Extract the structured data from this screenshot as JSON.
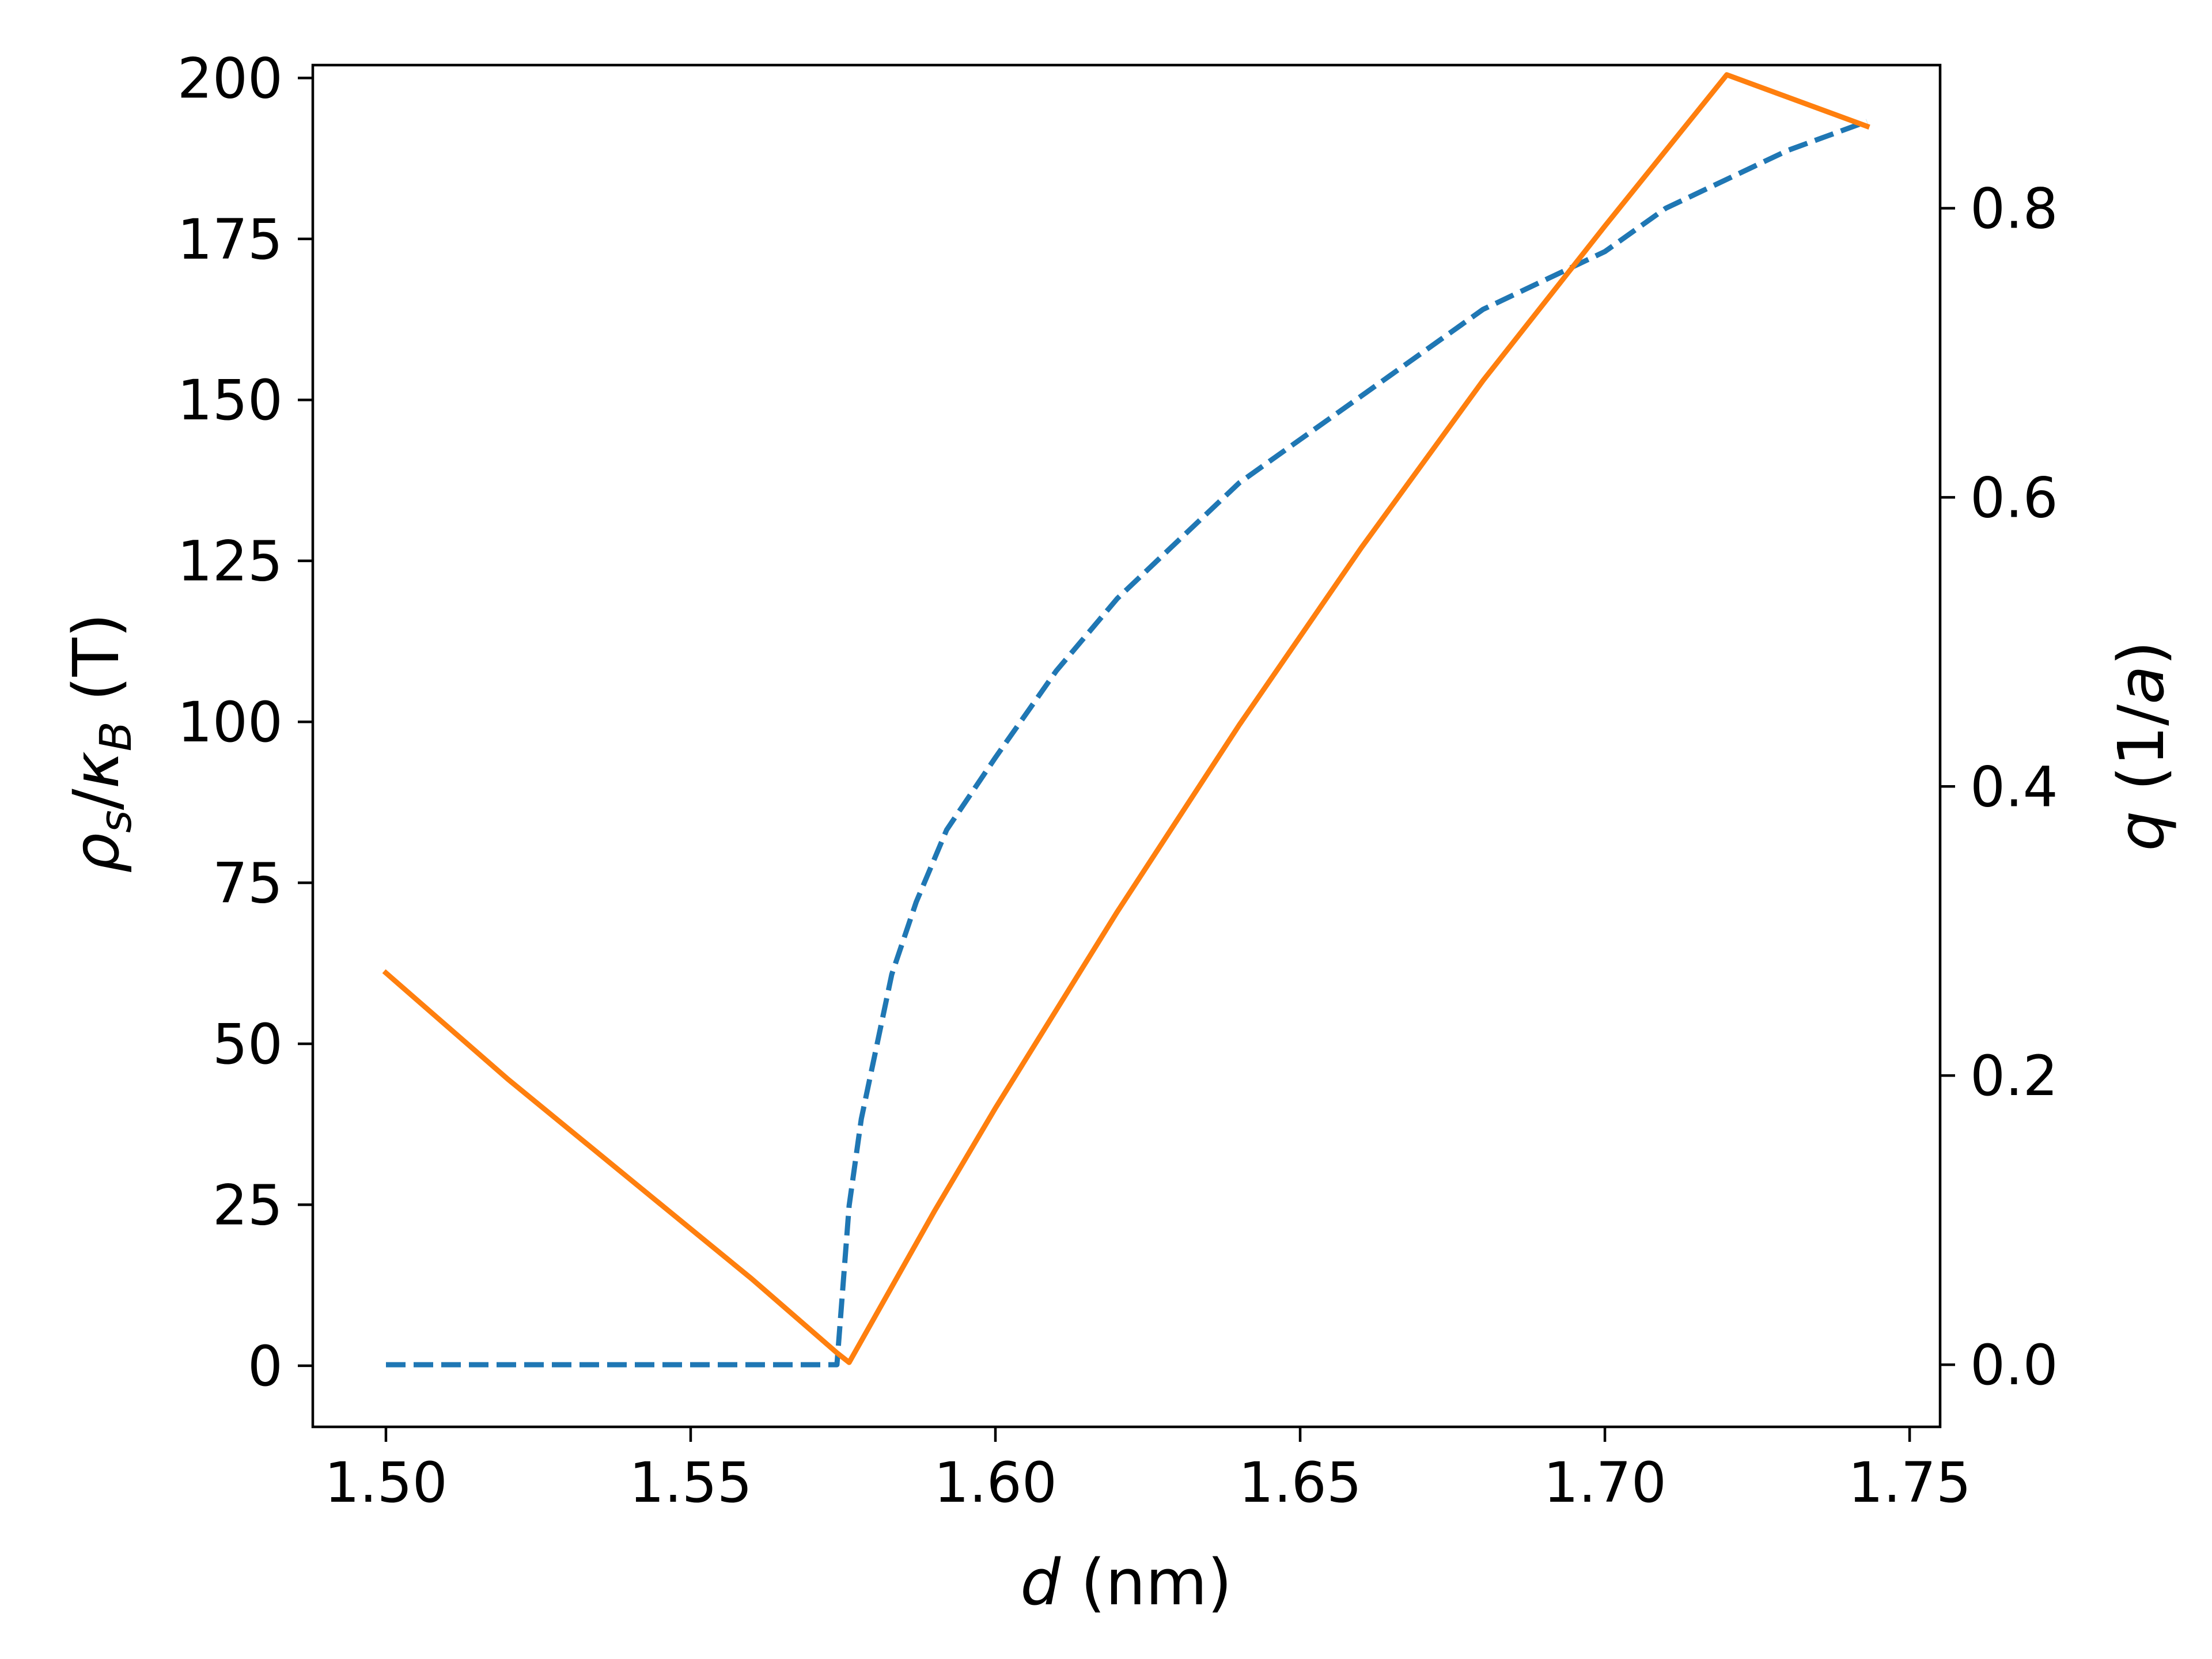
{
  "chart_data": {
    "type": "line",
    "title": "",
    "xlabel": {
      "var": "d",
      "rest": " (nm)"
    },
    "ylabel_left": {
      "rho": "ρ",
      "rho_sub": "s",
      "slash": "/",
      "k": "κ",
      "k_sub": "B",
      "rest": " (T)"
    },
    "ylabel_right": {
      "var": "q",
      "open": " (1/",
      "a": "a",
      "close": ")"
    },
    "xlim": [
      1.488,
      1.755
    ],
    "ylim_left": [
      -9.5,
      202
    ],
    "ylim_right": [
      -0.043,
      0.899
    ],
    "xticks": [
      1.5,
      1.55,
      1.6,
      1.65,
      1.7,
      1.75
    ],
    "xtick_labels": [
      "1.50",
      "1.55",
      "1.60",
      "1.65",
      "1.70",
      "1.75"
    ],
    "yticks_left": [
      0,
      25,
      50,
      75,
      100,
      125,
      150,
      175,
      200
    ],
    "ytick_labels_left": [
      "0",
      "25",
      "50",
      "75",
      "100",
      "125",
      "150",
      "175",
      "200"
    ],
    "yticks_right": [
      0.0,
      0.2,
      0.4,
      0.6,
      0.8
    ],
    "ytick_labels_right": [
      "0.0",
      "0.2",
      "0.4",
      "0.6",
      "0.8"
    ],
    "grid": false,
    "legend": "none",
    "series": [
      {
        "axis": "right",
        "style": "dashed",
        "color": "#1f77b4",
        "x": [
          1.5,
          1.52,
          1.54,
          1.56,
          1.574,
          1.576,
          1.578,
          1.58,
          1.583,
          1.587,
          1.592,
          1.6,
          1.61,
          1.62,
          1.63,
          1.64,
          1.65,
          1.66,
          1.67,
          1.68,
          1.69,
          1.7,
          1.71,
          1.72,
          1.73,
          1.743
        ],
        "values": [
          0.0,
          0.0,
          0.0,
          0.0,
          0.0,
          0.11,
          0.17,
          0.21,
          0.27,
          0.32,
          0.37,
          0.42,
          0.48,
          0.53,
          0.57,
          0.61,
          0.64,
          0.67,
          0.7,
          0.73,
          0.75,
          0.77,
          0.8,
          0.82,
          0.84,
          0.86
        ]
      },
      {
        "axis": "left",
        "style": "solid",
        "color": "#ff7f0e",
        "x": [
          1.5,
          1.52,
          1.54,
          1.56,
          1.574,
          1.576,
          1.59,
          1.6,
          1.62,
          1.64,
          1.66,
          1.68,
          1.7,
          1.72,
          1.743
        ],
        "values": [
          61.0,
          44.5,
          29.0,
          13.5,
          2.0,
          0.5,
          24.0,
          40.0,
          70.5,
          99.5,
          127.0,
          153.0,
          177.0,
          200.5,
          192.5
        ]
      }
    ]
  }
}
